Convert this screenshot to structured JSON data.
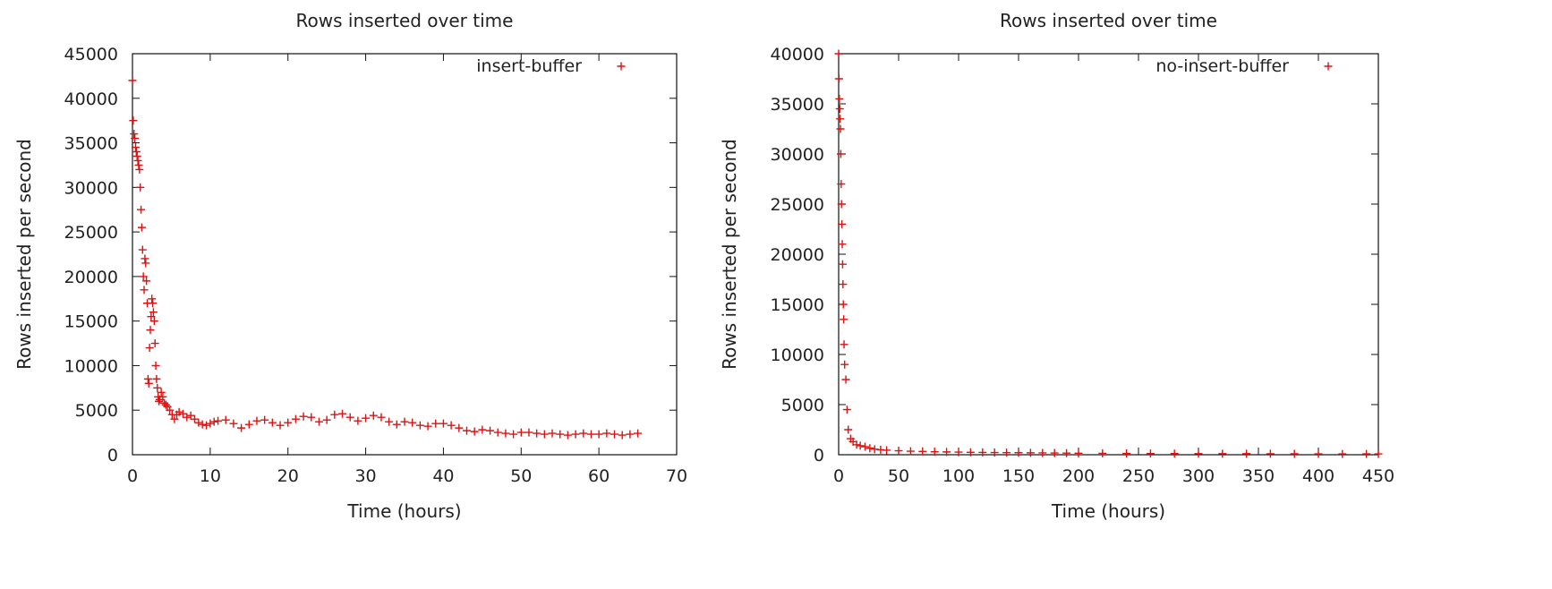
{
  "chart_data": [
    {
      "type": "scatter",
      "title": "Rows inserted over time",
      "xlabel": "Time (hours)",
      "ylabel": "Rows inserted per second",
      "xlim": [
        0,
        70
      ],
      "ylim": [
        0,
        45000
      ],
      "xticks": [
        "0",
        "10",
        "20",
        "30",
        "40",
        "50",
        "60",
        "70"
      ],
      "yticks": [
        "0",
        "5000",
        "10000",
        "15000",
        "20000",
        "25000",
        "30000",
        "35000",
        "40000",
        "45000"
      ],
      "grid": false,
      "legend": "top-right",
      "color": "#dd1111",
      "series": [
        {
          "name": "insert-buffer",
          "marker": "+",
          "x": [
            0,
            0.1,
            0.2,
            0.3,
            0.4,
            0.5,
            0.6,
            0.7,
            0.8,
            0.9,
            1.0,
            1.1,
            1.2,
            1.3,
            1.4,
            1.5,
            1.6,
            1.7,
            1.8,
            1.9,
            2.0,
            2.1,
            2.2,
            2.3,
            2.4,
            2.5,
            2.6,
            2.7,
            2.8,
            2.9,
            3.0,
            3.1,
            3.2,
            3.3,
            3.4,
            3.5,
            3.7,
            3.9,
            4.1,
            4.3,
            4.5,
            4.8,
            5.1,
            5.4,
            5.7,
            6.0,
            6.5,
            7,
            7.5,
            8,
            8.5,
            9,
            9.5,
            10,
            10.5,
            11,
            12,
            13,
            14,
            15,
            16,
            17,
            18,
            19,
            20,
            21,
            22,
            23,
            24,
            25,
            26,
            27,
            28,
            29,
            30,
            31,
            32,
            33,
            34,
            35,
            36,
            37,
            38,
            39,
            40,
            41,
            42,
            43,
            44,
            45,
            46,
            47,
            48,
            49,
            50,
            51,
            52,
            53,
            54,
            55,
            56,
            57,
            58,
            59,
            60,
            61,
            62,
            63,
            64,
            65
          ],
          "y": [
            42000,
            37500,
            36000,
            35500,
            34500,
            34000,
            33500,
            33000,
            32500,
            32000,
            30000,
            27500,
            25500,
            23000,
            20000,
            18500,
            22000,
            21500,
            19500,
            17000,
            8500,
            8000,
            12000,
            14000,
            15500,
            17500,
            17000,
            16000,
            15000,
            12500,
            10000,
            8500,
            7500,
            6500,
            6000,
            6200,
            7000,
            6500,
            5800,
            5600,
            5400,
            5000,
            4500,
            4000,
            4500,
            4800,
            4600,
            4200,
            4400,
            4000,
            3600,
            3400,
            3300,
            3500,
            3700,
            3800,
            3900,
            3500,
            3000,
            3400,
            3800,
            3900,
            3600,
            3300,
            3600,
            4000,
            4300,
            4200,
            3700,
            3900,
            4500,
            4600,
            4200,
            3800,
            4100,
            4400,
            4200,
            3700,
            3400,
            3700,
            3600,
            3300,
            3200,
            3500,
            3500,
            3300,
            3000,
            2700,
            2600,
            2800,
            2700,
            2500,
            2400,
            2300,
            2500,
            2500,
            2400,
            2300,
            2400,
            2300,
            2200,
            2300,
            2400,
            2300,
            2300,
            2400,
            2300,
            2200,
            2300,
            2400
          ]
        }
      ]
    },
    {
      "type": "scatter",
      "title": "Rows inserted over time",
      "xlabel": "Time (hours)",
      "ylabel": "Rows inserted per second",
      "xlim": [
        0,
        450
      ],
      "ylim": [
        0,
        40000
      ],
      "xticks": [
        "0",
        "50",
        "100",
        "150",
        "200",
        "250",
        "300",
        "350",
        "400",
        "450"
      ],
      "yticks": [
        "0",
        "5000",
        "10000",
        "15000",
        "20000",
        "25000",
        "30000",
        "35000",
        "40000"
      ],
      "grid": false,
      "legend": "top-right",
      "color": "#dd1111",
      "series": [
        {
          "name": "no-insert-buffer",
          "marker": "+",
          "x": [
            0,
            0.3,
            0.6,
            0.9,
            1.2,
            1.5,
            1.8,
            2.1,
            2.4,
            2.7,
            3.0,
            3.3,
            3.6,
            3.9,
            4.2,
            4.5,
            5,
            6,
            7,
            8,
            10,
            12,
            15,
            18,
            22,
            26,
            30,
            35,
            40,
            50,
            60,
            70,
            80,
            90,
            100,
            110,
            120,
            130,
            140,
            150,
            160,
            170,
            180,
            190,
            200,
            220,
            240,
            260,
            280,
            300,
            320,
            340,
            360,
            380,
            400,
            420,
            440,
            450
          ],
          "y": [
            40000,
            37500,
            35500,
            34500,
            33500,
            32500,
            30000,
            27000,
            25000,
            23000,
            21000,
            19000,
            17000,
            15000,
            13500,
            11000,
            9000,
            7500,
            4500,
            2500,
            1600,
            1300,
            1000,
            900,
            800,
            650,
            550,
            500,
            450,
            400,
            350,
            330,
            300,
            280,
            260,
            240,
            230,
            220,
            210,
            200,
            190,
            180,
            170,
            160,
            150,
            140,
            130,
            120,
            115,
            110,
            105,
            100,
            95,
            90,
            85,
            80,
            80,
            80
          ]
        }
      ]
    }
  ]
}
